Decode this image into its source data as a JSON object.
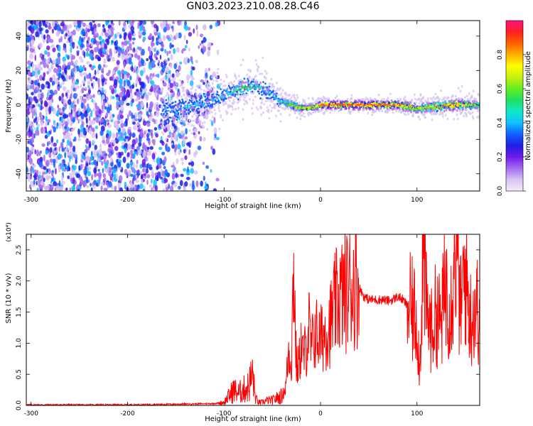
{
  "title": "GN03.2023.210.08.28.C46",
  "chart_data": [
    {
      "type": "heatmap",
      "xlabel": "Height of straight line (km)",
      "ylabel": "Frequency (Hz)",
      "xlim": [
        -305,
        165
      ],
      "ylim": [
        -50,
        49
      ],
      "x_ticks": [
        -300,
        -200,
        -100,
        0,
        100
      ],
      "y_ticks": [
        -40,
        -20,
        0,
        20,
        40
      ],
      "colorbar": {
        "label": "Normalized spectral amplitude",
        "range": [
          0,
          1
        ],
        "ticks": [
          0.0,
          0.2,
          0.4,
          0.6,
          0.8
        ],
        "colors": [
          "#f4ecfb",
          "#d8c3f5",
          "#a46cf0",
          "#6f1ae8",
          "#1f1fe6",
          "#1060ff",
          "#10c0ff",
          "#10e8c8",
          "#20e060",
          "#60ee20",
          "#c8ee10",
          "#ffff00",
          "#ffb000",
          "#ff6000",
          "#ff2020",
          "#ff1080"
        ]
      },
      "ridge": {
        "x": [
          -165,
          -155,
          -140,
          -125,
          -110,
          -100,
          -90,
          -80,
          -70,
          -60,
          -50,
          -42,
          -35,
          -25,
          -15,
          -5,
          0,
          20,
          50,
          80,
          100,
          120,
          140,
          165
        ],
        "y": [
          -3,
          -3,
          -1,
          0,
          3,
          6,
          8,
          10,
          11,
          10,
          6,
          2,
          1,
          -1,
          -2,
          -1,
          0,
          0,
          0,
          0,
          -2,
          -1,
          0,
          0
        ],
        "amp": [
          0.35,
          0.4,
          0.45,
          0.45,
          0.45,
          0.5,
          0.55,
          0.6,
          0.55,
          0.5,
          0.45,
          0.5,
          0.6,
          0.7,
          0.75,
          0.8,
          0.95,
          0.95,
          0.95,
          0.9,
          0.7,
          0.75,
          0.85,
          0.6
        ],
        "spread_hz": [
          9,
          9,
          8,
          7,
          6,
          6,
          6,
          6,
          6,
          6,
          5,
          4,
          3,
          3,
          2,
          2,
          2,
          2,
          2,
          2,
          3,
          3,
          3,
          3
        ]
      },
      "noise_region": {
        "x_start": -305,
        "x_end": -125
      }
    },
    {
      "type": "line",
      "xlabel": "Height of straight line (km)",
      "ylabel": "SNR (10 * v/v)",
      "y_multiplier": "(x10⁴)",
      "xlim": [
        -305,
        165
      ],
      "ylim": [
        0,
        2.75
      ],
      "x_ticks": [
        -300,
        -200,
        -100,
        0,
        100
      ],
      "y_ticks": [
        0.0,
        0.5,
        1.0,
        1.5,
        2.0,
        2.5
      ],
      "grid": false,
      "color": "#ff0000",
      "x": [
        -305,
        -250,
        -200,
        -150,
        -110,
        -100,
        -95,
        -90,
        -85,
        -80,
        -75,
        -70,
        -68,
        -65,
        -60,
        -55,
        -50,
        -45,
        -40,
        -36,
        -33,
        -30,
        -28,
        -25,
        -22,
        -20,
        -18,
        -15,
        -12,
        -10,
        -8,
        -5,
        -3,
        0,
        5,
        10,
        15,
        20,
        25,
        30,
        35,
        40,
        45,
        50,
        55,
        60,
        65,
        70,
        75,
        80,
        85,
        90,
        95,
        100,
        103,
        106,
        110,
        115,
        120,
        125,
        130,
        135,
        140,
        145,
        150,
        155,
        160,
        165
      ],
      "y": [
        0.01,
        0.01,
        0.01,
        0.02,
        0.03,
        0.05,
        0.15,
        0.25,
        0.2,
        0.25,
        0.3,
        0.5,
        0.15,
        0.05,
        0.05,
        0.08,
        0.08,
        0.12,
        0.15,
        0.3,
        0.9,
        0.7,
        2.35,
        0.6,
        0.7,
        1.0,
        0.8,
        0.9,
        1.3,
        0.9,
        1.0,
        1.2,
        1.1,
        1.05,
        1.2,
        1.3,
        1.6,
        1.75,
        1.8,
        1.9,
        1.95,
        1.9,
        1.75,
        1.7,
        1.7,
        1.7,
        1.7,
        1.68,
        1.7,
        1.75,
        1.7,
        1.6,
        1.5,
        1.4,
        0.5,
        2.6,
        1.5,
        1.2,
        1.5,
        1.3,
        2.0,
        1.6,
        2.7,
        1.5,
        2.2,
        1.4,
        1.6,
        1.5
      ]
    }
  ]
}
